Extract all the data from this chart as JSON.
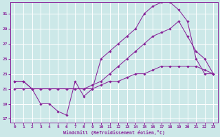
{
  "xlabel": "Windchill (Refroidissement éolien,°C)",
  "xlim": [
    -0.5,
    23.5
  ],
  "ylim": [
    16.5,
    32.5
  ],
  "yticks": [
    17,
    19,
    21,
    23,
    25,
    27,
    29,
    31
  ],
  "xticks": [
    0,
    1,
    2,
    3,
    4,
    5,
    6,
    7,
    8,
    9,
    10,
    11,
    12,
    13,
    14,
    15,
    16,
    17,
    18,
    19,
    20,
    21,
    22,
    23
  ],
  "bg_color": "#cce8e8",
  "line_color": "#882299",
  "grid_color": "#ffffff",
  "series": [
    {
      "x": [
        0,
        1,
        2,
        3,
        4,
        5,
        6,
        7,
        8,
        9,
        10,
        11,
        12,
        13,
        14,
        15,
        16,
        17,
        18,
        19,
        20,
        21,
        22,
        23
      ],
      "y": [
        22,
        22,
        21,
        19,
        19,
        18,
        17.5,
        22,
        20,
        21,
        25,
        26,
        27,
        28,
        29,
        31,
        32,
        32.5,
        32.5,
        31.5,
        30,
        25,
        23,
        23
      ]
    },
    {
      "x": [
        0,
        1,
        2,
        3,
        4,
        5,
        6,
        7,
        8,
        9,
        10,
        11,
        12,
        13,
        14,
        15,
        16,
        17,
        18,
        19,
        20,
        21,
        22,
        23
      ],
      "y": [
        22,
        22,
        21,
        21,
        21,
        21,
        21,
        21,
        21,
        21.5,
        22,
        23,
        24,
        25,
        26,
        27,
        28,
        28.5,
        29,
        30,
        28,
        26,
        25,
        23
      ]
    },
    {
      "x": [
        0,
        1,
        2,
        3,
        4,
        5,
        6,
        7,
        8,
        9,
        10,
        11,
        12,
        13,
        14,
        15,
        16,
        17,
        18,
        19,
        20,
        21,
        22,
        23
      ],
      "y": [
        21,
        21,
        21,
        21,
        21,
        21,
        21,
        21,
        21,
        21,
        21.5,
        22,
        22,
        22.5,
        23,
        23,
        23.5,
        24,
        24,
        24,
        24,
        24,
        23.5,
        23
      ]
    }
  ]
}
